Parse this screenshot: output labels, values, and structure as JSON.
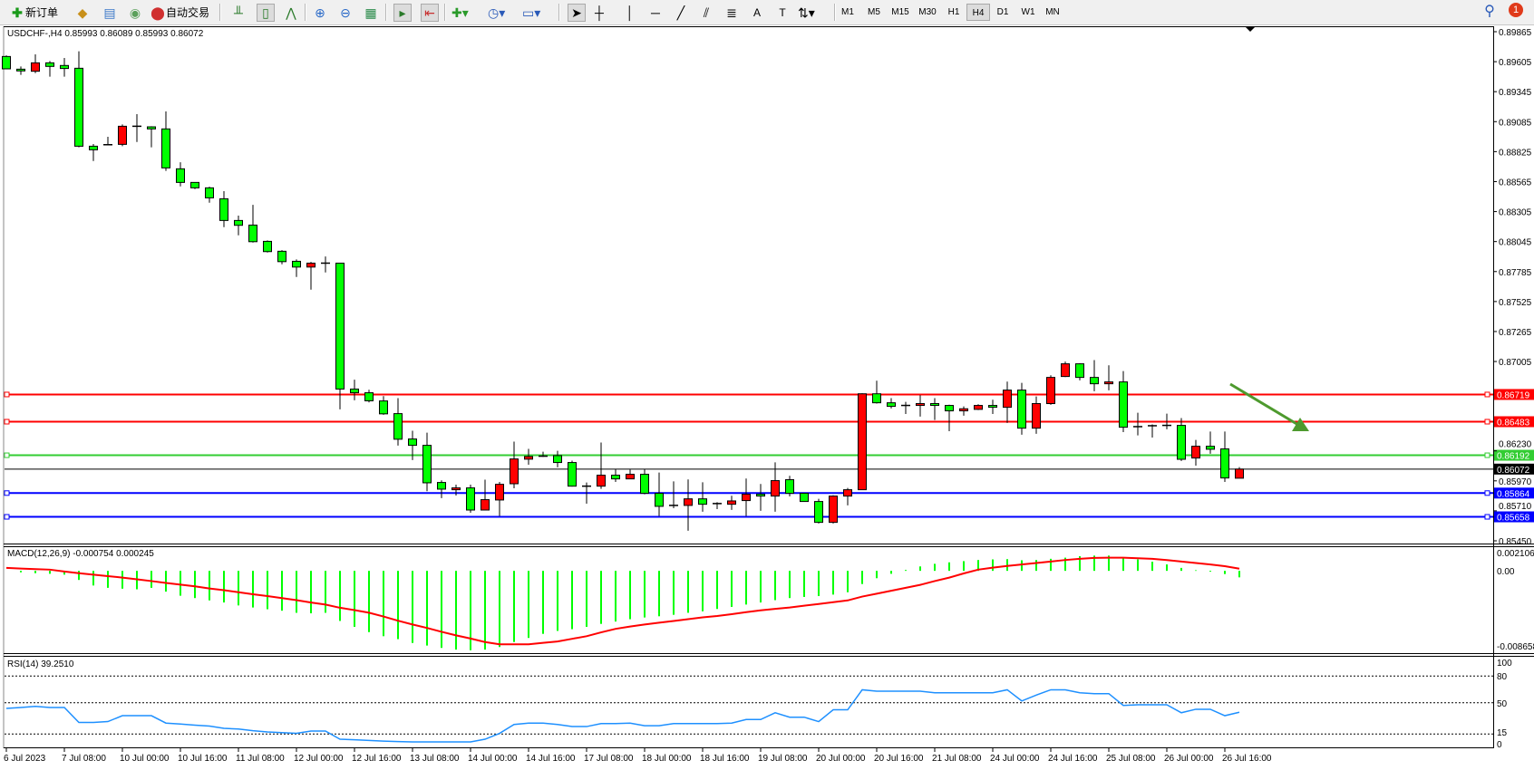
{
  "toolbar": {
    "new_order": "新订单",
    "auto_trading": "自动交易",
    "timeframes": [
      "M1",
      "M5",
      "M15",
      "M30",
      "H1",
      "H4",
      "D1",
      "W1",
      "MN"
    ],
    "selected_timeframe": "H4",
    "notification_count": "1"
  },
  "chart": {
    "symbol_header": "USDCHF-,H4  0.85993 0.86089 0.85993 0.86072",
    "macd_label": "MACD(12,26,9) -0.000754 0.000245",
    "rsi_label": "RSI(14) 39.2510",
    "price_axis": [
      "0.89865",
      "0.89605",
      "0.89345",
      "0.89085",
      "0.88825",
      "0.88565",
      "0.88305",
      "0.88045",
      "0.87785",
      "0.87525",
      "0.87265",
      "0.87005",
      "0.86230",
      "0.85970",
      "0.85710",
      "0.85450"
    ],
    "macd_axis": [
      "0.002106",
      "0.00",
      "-0.008658"
    ],
    "rsi_axis": [
      "100",
      "80",
      "50",
      "15",
      "0"
    ],
    "time_axis": [
      "6 Jul 2023",
      "7 Jul 08:00",
      "10 Jul 00:00",
      "10 Jul 16:00",
      "11 Jul 08:00",
      "12 Jul 00:00",
      "12 Jul 16:00",
      "13 Jul 08:00",
      "14 Jul 00:00",
      "14 Jul 16:00",
      "17 Jul 08:00",
      "18 Jul 00:00",
      "18 Jul 16:00",
      "19 Jul 08:00",
      "20 Jul 00:00",
      "20 Jul 16:00",
      "21 Jul 08:00",
      "24 Jul 00:00",
      "24 Jul 16:00",
      "25 Jul 08:00",
      "26 Jul 00:00",
      "26 Jul 16:00"
    ],
    "levels": [
      {
        "price": "0.86719",
        "color": "#ff0000"
      },
      {
        "price": "0.86483",
        "color": "#ff0000"
      },
      {
        "price": "0.86192",
        "color": "#32cd32"
      },
      {
        "price": "0.85864",
        "color": "#0000ff"
      },
      {
        "price": "0.85658",
        "color": "#0000ff"
      }
    ],
    "current_price": "0.86072",
    "colors": {
      "bear_candle": "#00ff00",
      "bull_candle": "#ff0000",
      "macd_hist": "#00ff00",
      "macd_signal": "#ff0000",
      "rsi": "#1e90ff",
      "arrow": "#4e9a2e"
    }
  },
  "chart_data": {
    "type": "candlestick",
    "ylim": [
      0.8545,
      0.89865
    ],
    "ohlc": [
      [
        0.8965,
        0.8966,
        0.8954,
        0.89543
      ],
      [
        0.8954,
        0.89564,
        0.89491,
        0.89525
      ],
      [
        0.89522,
        0.89669,
        0.89506,
        0.89595
      ],
      [
        0.89595,
        0.89611,
        0.89475,
        0.89564
      ],
      [
        0.89572,
        0.89637,
        0.89475,
        0.89546
      ],
      [
        0.89548,
        0.89695,
        0.88862,
        0.88872
      ],
      [
        0.88872,
        0.88891,
        0.88744,
        0.88841
      ],
      [
        0.88885,
        0.88954,
        0.8888,
        0.88882
      ],
      [
        0.88888,
        0.89061,
        0.88872,
        0.89045
      ],
      [
        0.89045,
        0.8915,
        0.88909,
        0.89043
      ],
      [
        0.8904,
        0.89045,
        0.88862,
        0.89022
      ],
      [
        0.89022,
        0.89174,
        0.88658,
        0.88684
      ],
      [
        0.88676,
        0.88733,
        0.88524,
        0.88558
      ],
      [
        0.88558,
        0.8856,
        0.885,
        0.88511
      ],
      [
        0.88511,
        0.88521,
        0.88382,
        0.88424
      ],
      [
        0.88416,
        0.88482,
        0.8817,
        0.88228
      ],
      [
        0.88228,
        0.8827,
        0.88099,
        0.88186
      ],
      [
        0.88188,
        0.88364,
        0.88037,
        0.88044
      ],
      [
        0.88047,
        0.88055,
        0.8795,
        0.87958
      ],
      [
        0.87961,
        0.87971,
        0.87848,
        0.87871
      ],
      [
        0.87874,
        0.8789,
        0.87738,
        0.87824
      ],
      [
        0.87824,
        0.87869,
        0.87628,
        0.87858
      ],
      [
        0.87858,
        0.87916,
        0.87777,
        0.87856
      ],
      [
        0.87858,
        0.8786,
        0.8659,
        0.86766
      ],
      [
        0.86766,
        0.86847,
        0.86669,
        0.86734
      ],
      [
        0.86734,
        0.8676,
        0.8665,
        0.86664
      ],
      [
        0.86663,
        0.86705,
        0.86543,
        0.86551
      ],
      [
        0.86553,
        0.86687,
        0.86276,
        0.86331
      ],
      [
        0.86333,
        0.86404,
        0.8615,
        0.86278
      ],
      [
        0.86278,
        0.86388,
        0.8588,
        0.85953
      ],
      [
        0.85956,
        0.85974,
        0.8582,
        0.85898
      ],
      [
        0.85893,
        0.85937,
        0.85843,
        0.85909
      ],
      [
        0.85909,
        0.85937,
        0.85694,
        0.85717
      ],
      [
        0.85717,
        0.8598,
        0.85717,
        0.85807
      ],
      [
        0.85804,
        0.85961,
        0.85665,
        0.8594
      ],
      [
        0.85945,
        0.8631,
        0.85906,
        0.8616
      ],
      [
        0.86158,
        0.86247,
        0.8611,
        0.86181
      ],
      [
        0.86184,
        0.86223,
        0.86178,
        0.86182
      ],
      [
        0.86189,
        0.86231,
        0.86087,
        0.86129
      ],
      [
        0.86129,
        0.86145,
        0.8592,
        0.85924
      ],
      [
        0.85924,
        0.85956,
        0.85772,
        0.85922
      ],
      [
        0.85924,
        0.86302,
        0.85901,
        0.86019
      ],
      [
        0.86019,
        0.86071,
        0.85961,
        0.85987
      ],
      [
        0.85987,
        0.86069,
        0.85987,
        0.86027
      ],
      [
        0.86027,
        0.86071,
        0.85854,
        0.85862
      ],
      [
        0.85862,
        0.86042,
        0.85665,
        0.85749
      ],
      [
        0.85757,
        0.85966,
        0.85733,
        0.85755
      ],
      [
        0.85757,
        0.85982,
        0.85537,
        0.85814
      ],
      [
        0.85814,
        0.85958,
        0.85702,
        0.85767
      ],
      [
        0.85773,
        0.85785,
        0.85725,
        0.85771
      ],
      [
        0.85767,
        0.85841,
        0.85718,
        0.85796
      ],
      [
        0.85799,
        0.8599,
        0.85665,
        0.85854
      ],
      [
        0.85854,
        0.85943,
        0.8571,
        0.85838
      ],
      [
        0.85838,
        0.86131,
        0.85702,
        0.85972
      ],
      [
        0.8598,
        0.86014,
        0.85835,
        0.85862
      ],
      [
        0.85862,
        0.85862,
        0.85788,
        0.85791
      ],
      [
        0.85791,
        0.85814,
        0.856,
        0.8561
      ],
      [
        0.8561,
        0.85845,
        0.856,
        0.85838
      ],
      [
        0.85838,
        0.85909,
        0.85757,
        0.85893
      ],
      [
        0.85893,
        0.8673,
        0.8589,
        0.86725
      ],
      [
        0.86725,
        0.86839,
        0.8664,
        0.86647
      ],
      [
        0.86647,
        0.86687,
        0.86598,
        0.86616
      ],
      [
        0.86624,
        0.86655,
        0.8655,
        0.86622
      ],
      [
        0.86624,
        0.86713,
        0.86527,
        0.8664
      ],
      [
        0.8664,
        0.86687,
        0.86498,
        0.86624
      ],
      [
        0.86624,
        0.8663,
        0.86401,
        0.86577
      ],
      [
        0.86577,
        0.86616,
        0.86535,
        0.86595
      ],
      [
        0.8659,
        0.86634,
        0.86584,
        0.86624
      ],
      [
        0.86624,
        0.86674,
        0.8655,
        0.86608
      ],
      [
        0.86608,
        0.86831,
        0.86472,
        0.86757
      ],
      [
        0.86757,
        0.8682,
        0.8637,
        0.86427
      ],
      [
        0.86427,
        0.86702,
        0.86378,
        0.8664
      ],
      [
        0.8664,
        0.86886,
        0.86629,
        0.86867
      ],
      [
        0.86875,
        0.87004,
        0.8687,
        0.86985
      ],
      [
        0.86985,
        0.8699,
        0.86841,
        0.86867
      ],
      [
        0.86867,
        0.87017,
        0.86747,
        0.86812
      ],
      [
        0.86812,
        0.86972,
        0.86755,
        0.86828
      ],
      [
        0.86828,
        0.86922,
        0.86393,
        0.86435
      ],
      [
        0.8644,
        0.86561,
        0.86364,
        0.86438
      ],
      [
        0.86448,
        0.86459,
        0.86346,
        0.86446
      ],
      [
        0.86451,
        0.86553,
        0.86417,
        0.86449
      ],
      [
        0.86451,
        0.86514,
        0.86142,
        0.86157
      ],
      [
        0.86168,
        0.86325,
        0.86102,
        0.8627
      ],
      [
        0.8627,
        0.86398,
        0.86205,
        0.86244
      ],
      [
        0.86247,
        0.86398,
        0.85961,
        0.85995
      ],
      [
        0.85993,
        0.86089,
        0.85993,
        0.86072
      ]
    ],
    "macd_ylim": [
      -0.008658,
      0.002106
    ],
    "macd_hist": [
      0.0,
      -0.00017,
      -0.00027,
      -0.00034,
      -0.00044,
      -0.00105,
      -0.00169,
      -0.00196,
      -0.00206,
      -0.00213,
      -0.00196,
      -0.0024,
      -0.00287,
      -0.00314,
      -0.00341,
      -0.00365,
      -0.00399,
      -0.00423,
      -0.00443,
      -0.0046,
      -0.00484,
      -0.0049,
      -0.00484,
      -0.00578,
      -0.00646,
      -0.00707,
      -0.00754,
      -0.00788,
      -0.00832,
      -0.00862,
      -0.00889,
      -0.00909,
      -0.00916,
      -0.00909,
      -0.00879,
      -0.00821,
      -0.00774,
      -0.00727,
      -0.00693,
      -0.00673,
      -0.00646,
      -0.00612,
      -0.00585,
      -0.00558,
      -0.00538,
      -0.00524,
      -0.00507,
      -0.00484,
      -0.00467,
      -0.0044,
      -0.00416,
      -0.00389,
      -0.00365,
      -0.00338,
      -0.00314,
      -0.00301,
      -0.00291,
      -0.00274,
      -0.00247,
      -0.00152,
      -0.00085,
      -0.00034,
      0.0001,
      0.00051,
      0.00081,
      0.00098,
      0.00112,
      0.00125,
      0.00132,
      0.00135,
      0.00122,
      0.00125,
      0.00139,
      0.00152,
      0.00169,
      0.00176,
      0.00176,
      0.00152,
      0.00132,
      0.00105,
      0.00074,
      0.00034,
      7e-05,
      -0.0001,
      -0.00037,
      -0.00075
    ],
    "macd_signal": [
      0.00034,
      0.00027,
      0.0002,
      0.00014,
      -7e-05,
      -0.00027,
      -0.00044,
      -0.00061,
      -0.00078,
      -0.00098,
      -0.00118,
      -0.00139,
      -0.00159,
      -0.00179,
      -0.00203,
      -0.00223,
      -0.00247,
      -0.0027,
      -0.00291,
      -0.00314,
      -0.00338,
      -0.00365,
      -0.00389,
      -0.00426,
      -0.00453,
      -0.00483,
      -0.00527,
      -0.00575,
      -0.00619,
      -0.00659,
      -0.00703,
      -0.00744,
      -0.00781,
      -0.00821,
      -0.00848,
      -0.00848,
      -0.00848,
      -0.00831,
      -0.00815,
      -0.00784,
      -0.00754,
      -0.0071,
      -0.00669,
      -0.00642,
      -0.00619,
      -0.00598,
      -0.00578,
      -0.00558,
      -0.00537,
      -0.00521,
      -0.005,
      -0.00477,
      -0.00456,
      -0.00439,
      -0.00423,
      -0.00402,
      -0.00382,
      -0.00362,
      -0.00341,
      -0.00297,
      -0.00264,
      -0.0023,
      -0.00196,
      -0.00162,
      -0.00118,
      -0.00078,
      -0.0003,
      0.00014,
      0.00037,
      0.00057,
      0.00074,
      0.00091,
      0.00108,
      0.00125,
      0.00139,
      0.00149,
      0.00152,
      0.00152,
      0.00145,
      0.00139,
      0.00125,
      0.00108,
      0.00091,
      0.00074,
      0.00054,
      0.00025
    ],
    "rsi_levels": [
      80,
      50,
      15
    ],
    "rsi": [
      43.7,
      44.7,
      46.0,
      44.7,
      44.7,
      27.9,
      27.9,
      28.9,
      35.5,
      35.5,
      35.5,
      27.2,
      26.2,
      24.9,
      23.9,
      21.3,
      20.6,
      18.6,
      17.3,
      16.5,
      15.7,
      18.3,
      18.3,
      9.1,
      8.5,
      7.8,
      7.0,
      6.5,
      6.1,
      6.1,
      6.1,
      6.1,
      6.1,
      9.1,
      15.7,
      25.6,
      27.2,
      27.2,
      25.6,
      23.3,
      23.3,
      26.6,
      26.6,
      27.2,
      24.3,
      24.3,
      26.6,
      26.6,
      26.6,
      26.6,
      27.2,
      31.2,
      31.2,
      38.8,
      33.8,
      33.8,
      28.9,
      42.1,
      42.1,
      64.5,
      62.9,
      62.9,
      62.9,
      62.9,
      61.2,
      61.2,
      61.2,
      61.2,
      61.2,
      64.5,
      52.0,
      58.6,
      64.5,
      64.5,
      61.2,
      60.2,
      60.2,
      47.0,
      47.7,
      47.7,
      47.7,
      38.8,
      42.7,
      42.7,
      35.5,
      39.3
    ]
  }
}
